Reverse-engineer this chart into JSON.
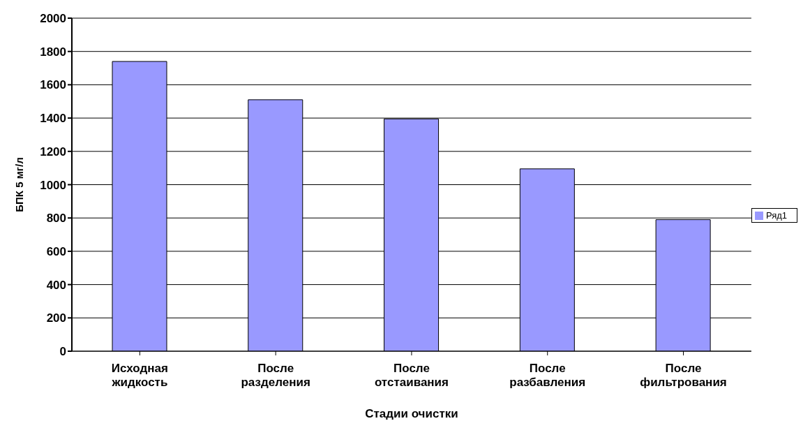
{
  "chart_data": {
    "type": "bar",
    "xlabel": "Стадии очистки",
    "ylabel": "БПК 5 мг/л",
    "categories": [
      "Исходная жидкость",
      "После разделения",
      "После отстаивания",
      "После разбавления",
      "После фильтрования"
    ],
    "series": [
      {
        "name": "Ряд1",
        "color": "#9999ff",
        "values": [
          1740,
          1510,
          1395,
          1095,
          790
        ]
      }
    ],
    "ylim": [
      0,
      2000
    ],
    "yticks": [
      0,
      200,
      400,
      600,
      800,
      1000,
      1200,
      1400,
      1600,
      1800,
      2000
    ],
    "grid": "y",
    "legend": "right"
  }
}
